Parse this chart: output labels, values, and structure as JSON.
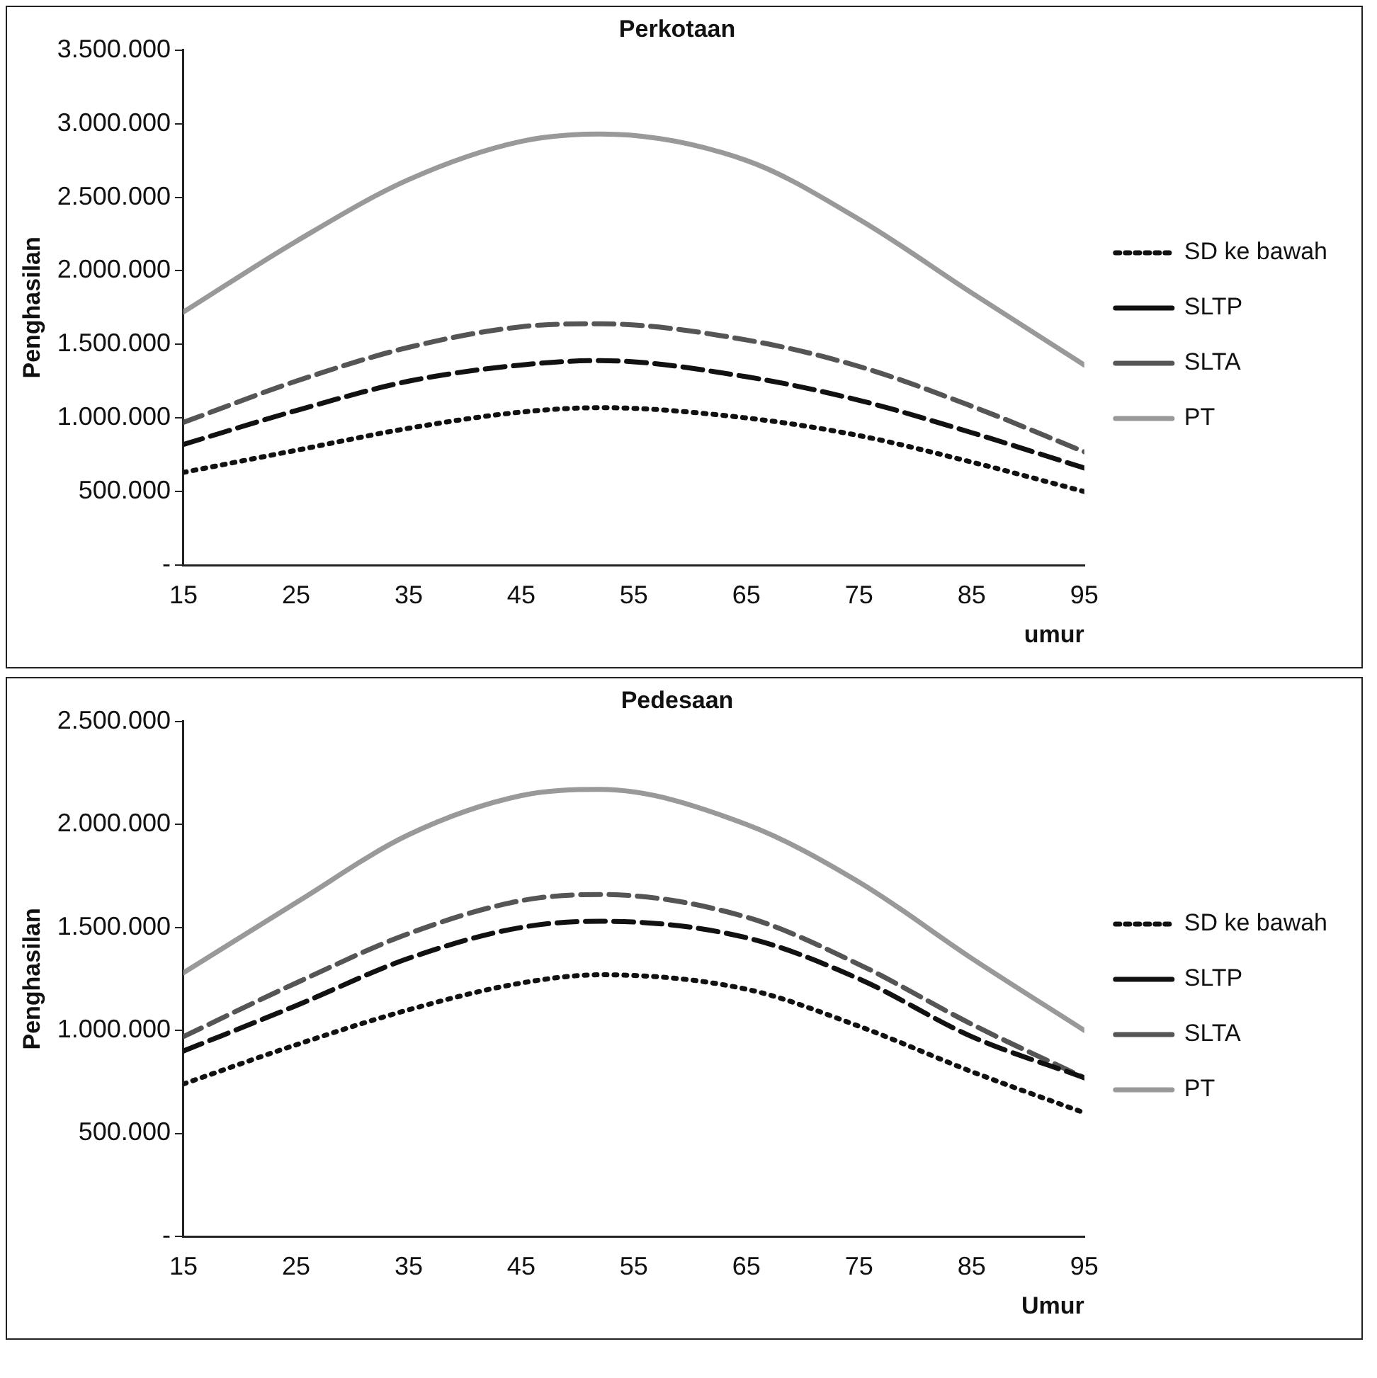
{
  "chart_data": [
    {
      "type": "line",
      "title": "Perkotaan",
      "xlabel": "umur",
      "ylabel": "Penghasilan",
      "xlim": [
        15,
        95
      ],
      "xticks": [
        15,
        25,
        35,
        45,
        55,
        65,
        75,
        85,
        95
      ],
      "ylim": [
        0,
        3500000
      ],
      "yticks": [
        {
          "value": 0,
          "label": "-"
        },
        {
          "value": 500000,
          "label": "500.000"
        },
        {
          "value": 1000000,
          "label": "1.000.000"
        },
        {
          "value": 1500000,
          "label": "1.500.000"
        },
        {
          "value": 2000000,
          "label": "2.000.000"
        },
        {
          "value": 2500000,
          "label": "2.500.000"
        },
        {
          "value": 3000000,
          "label": "3.000.000"
        },
        {
          "value": 3500000,
          "label": "3.500.000"
        }
      ],
      "grid": false,
      "legend": "right",
      "marker": "none",
      "x": [
        15,
        25,
        35,
        45,
        52,
        65,
        75,
        85,
        95
      ],
      "series": [
        {
          "name": "SD ke bawah",
          "color": "#111111",
          "line_style": "dotted",
          "values": [
            630000,
            780000,
            930000,
            1040000,
            1070000,
            1000000,
            880000,
            700000,
            500000
          ]
        },
        {
          "name": "SLTP",
          "color": "#111111",
          "line_style": "dashed",
          "values": [
            820000,
            1050000,
            1250000,
            1360000,
            1390000,
            1280000,
            1120000,
            900000,
            660000
          ]
        },
        {
          "name": "SLTA",
          "color": "#555555",
          "line_style": "dashed",
          "values": [
            970000,
            1250000,
            1480000,
            1620000,
            1640000,
            1530000,
            1350000,
            1080000,
            770000
          ]
        },
        {
          "name": "PT",
          "color": "#999999",
          "line_style": "solid",
          "values": [
            1720000,
            2200000,
            2620000,
            2880000,
            2930000,
            2750000,
            2350000,
            1850000,
            1360000
          ]
        }
      ]
    },
    {
      "type": "line",
      "title": "Pedesaan",
      "xlabel": "Umur",
      "ylabel": "Penghasilan",
      "xlim": [
        15,
        95
      ],
      "xticks": [
        15,
        25,
        35,
        45,
        55,
        65,
        75,
        85,
        95
      ],
      "ylim": [
        0,
        2500000
      ],
      "yticks": [
        {
          "value": 0,
          "label": "-"
        },
        {
          "value": 500000,
          "label": "500.000"
        },
        {
          "value": 1000000,
          "label": "1.000.000"
        },
        {
          "value": 1500000,
          "label": "1.500.000"
        },
        {
          "value": 2000000,
          "label": "2.000.000"
        },
        {
          "value": 2500000,
          "label": "2.500.000"
        }
      ],
      "grid": false,
      "legend": "right",
      "marker": "none",
      "x": [
        15,
        25,
        35,
        45,
        52,
        65,
        75,
        85,
        95
      ],
      "series": [
        {
          "name": "SD ke bawah",
          "color": "#111111",
          "line_style": "dotted",
          "values": [
            740000,
            930000,
            1100000,
            1230000,
            1270000,
            1200000,
            1020000,
            800000,
            600000
          ]
        },
        {
          "name": "SLTP",
          "color": "#111111",
          "line_style": "dashed",
          "values": [
            900000,
            1120000,
            1350000,
            1500000,
            1530000,
            1450000,
            1250000,
            970000,
            770000
          ]
        },
        {
          "name": "SLTA",
          "color": "#555555",
          "line_style": "dashed",
          "values": [
            970000,
            1230000,
            1470000,
            1630000,
            1660000,
            1550000,
            1320000,
            1030000,
            770000
          ]
        },
        {
          "name": "PT",
          "color": "#999999",
          "line_style": "solid",
          "values": [
            1280000,
            1620000,
            1950000,
            2140000,
            2170000,
            2000000,
            1720000,
            1350000,
            1000000
          ]
        }
      ]
    }
  ]
}
